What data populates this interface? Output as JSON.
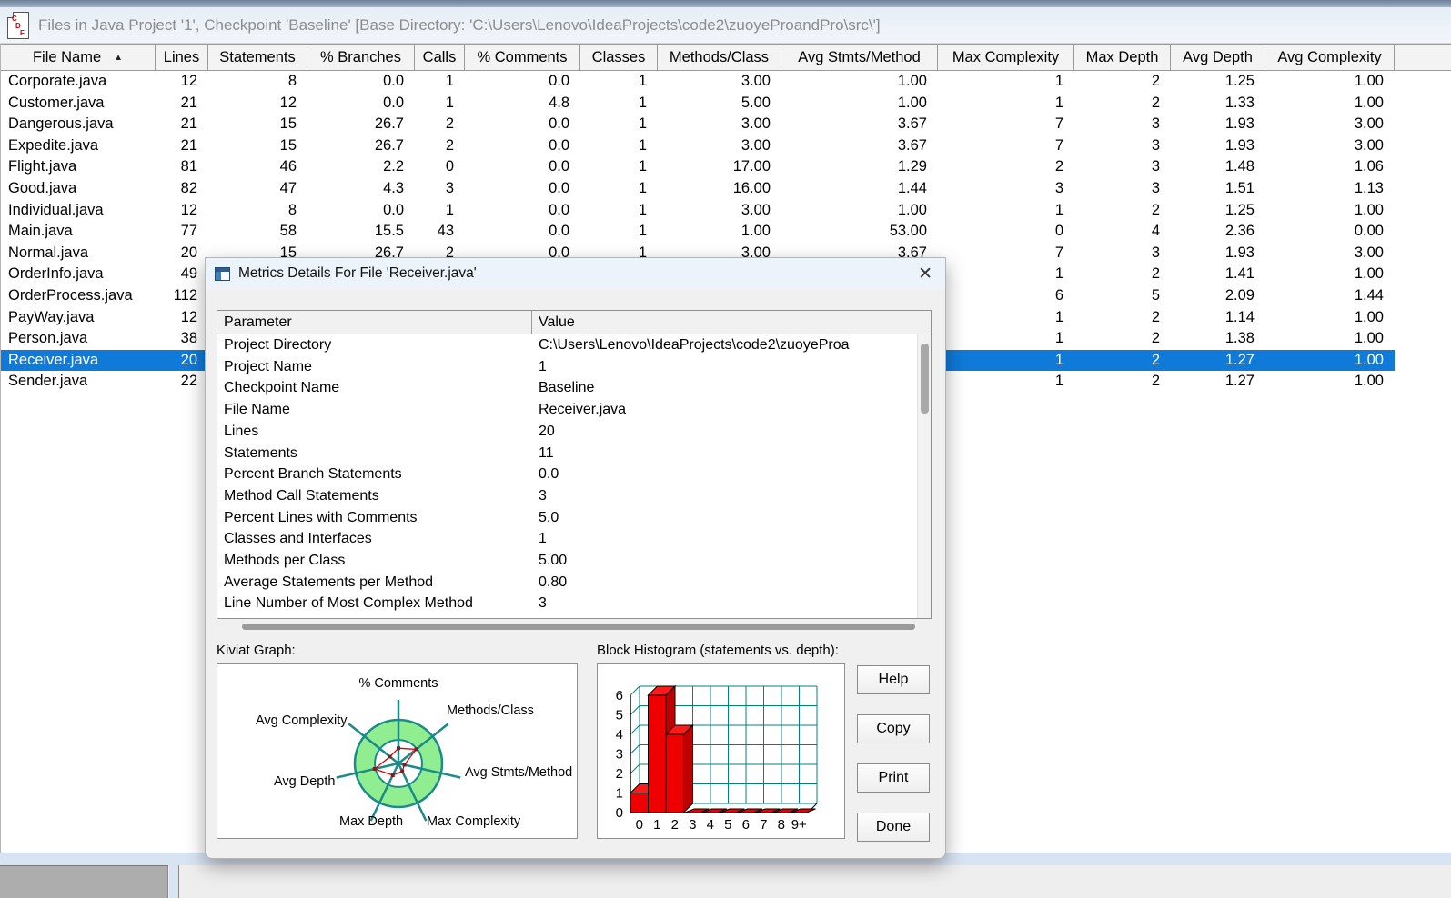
{
  "window": {
    "title": "Files in Java Project '1', Checkpoint 'Baseline'  [Base Directory: 'C:\\Users\\Lenovo\\IdeaProjects\\code2\\zuoyeProandPro\\src\\']",
    "app_icon": "sourcemonitor-file-icon"
  },
  "table": {
    "columns": [
      "File Name",
      "Lines",
      "Statements",
      "% Branches",
      "Calls",
      "% Comments",
      "Classes",
      "Methods/Class",
      "Avg Stmts/Method",
      "Max Complexity",
      "Max Depth",
      "Avg Depth",
      "Avg Complexity"
    ],
    "sort_column": "File Name",
    "sort_icon": "sort-ascending-icon",
    "selected_row_index": 13,
    "selection_color": "#0f7ad8",
    "rows": [
      [
        "Corporate.java",
        "12",
        "8",
        "0.0",
        "1",
        "0.0",
        "1",
        "3.00",
        "1.00",
        "1",
        "2",
        "1.25",
        "1.00"
      ],
      [
        "Customer.java",
        "21",
        "12",
        "0.0",
        "1",
        "4.8",
        "1",
        "5.00",
        "1.00",
        "1",
        "2",
        "1.33",
        "1.00"
      ],
      [
        "Dangerous.java",
        "21",
        "15",
        "26.7",
        "2",
        "0.0",
        "1",
        "3.00",
        "3.67",
        "7",
        "3",
        "1.93",
        "3.00"
      ],
      [
        "Expedite.java",
        "21",
        "15",
        "26.7",
        "2",
        "0.0",
        "1",
        "3.00",
        "3.67",
        "7",
        "3",
        "1.93",
        "3.00"
      ],
      [
        "Flight.java",
        "81",
        "46",
        "2.2",
        "0",
        "0.0",
        "1",
        "17.00",
        "1.29",
        "2",
        "3",
        "1.48",
        "1.06"
      ],
      [
        "Good.java",
        "82",
        "47",
        "4.3",
        "3",
        "0.0",
        "1",
        "16.00",
        "1.44",
        "3",
        "3",
        "1.51",
        "1.13"
      ],
      [
        "Individual.java",
        "12",
        "8",
        "0.0",
        "1",
        "0.0",
        "1",
        "3.00",
        "1.00",
        "1",
        "2",
        "1.25",
        "1.00"
      ],
      [
        "Main.java",
        "77",
        "58",
        "15.5",
        "43",
        "0.0",
        "1",
        "1.00",
        "53.00",
        "0",
        "4",
        "2.36",
        "0.00"
      ],
      [
        "Normal.java",
        "20",
        "15",
        "26.7",
        "2",
        "0.0",
        "1",
        "3.00",
        "3.67",
        "7",
        "3",
        "1.93",
        "3.00"
      ],
      [
        "OrderInfo.java",
        "49",
        "",
        "",
        "",
        "",
        "",
        "",
        "",
        "1",
        "2",
        "1.41",
        "1.00"
      ],
      [
        "OrderProcess.java",
        "112",
        "",
        "",
        "",
        "",
        "",
        "",
        "",
        "6",
        "5",
        "2.09",
        "1.44"
      ],
      [
        "PayWay.java",
        "12",
        "",
        "",
        "",
        "",
        "",
        "",
        "",
        "1",
        "2",
        "1.14",
        "1.00"
      ],
      [
        "Person.java",
        "38",
        "",
        "",
        "",
        "",
        "",
        "",
        "",
        "1",
        "2",
        "1.38",
        "1.00"
      ],
      [
        "Receiver.java",
        "20",
        "",
        "",
        "",
        "",
        "",
        "",
        "",
        "1",
        "2",
        "1.27",
        "1.00"
      ],
      [
        "Sender.java",
        "22",
        "",
        "",
        "",
        "",
        "",
        "",
        "",
        "1",
        "2",
        "1.27",
        "1.00"
      ]
    ]
  },
  "dialog": {
    "title": "Metrics Details For File 'Receiver.java'",
    "close_icon": "close-icon",
    "details": {
      "headers": [
        "Parameter",
        "Value"
      ],
      "rows": [
        [
          "Project Directory",
          "C:\\Users\\Lenovo\\IdeaProjects\\code2\\zuoyeProa"
        ],
        [
          "Project Name",
          "1"
        ],
        [
          "Checkpoint Name",
          "Baseline"
        ],
        [
          "File Name",
          "Receiver.java"
        ],
        [
          "Lines",
          "20"
        ],
        [
          "Statements",
          "11"
        ],
        [
          "Percent Branch Statements",
          "0.0"
        ],
        [
          "Method Call Statements",
          "3"
        ],
        [
          "Percent Lines with Comments",
          "5.0"
        ],
        [
          "Classes and Interfaces",
          "1"
        ],
        [
          "Methods per Class",
          "5.00"
        ],
        [
          "Average Statements per Method",
          "0.80"
        ],
        [
          "Line Number of Most Complex Method",
          "3"
        ]
      ]
    },
    "kiviat_label": "Kiviat Graph:",
    "histogram_label": "Block Histogram (statements vs. depth):",
    "buttons": [
      "Help",
      "Copy",
      "Print",
      "Done"
    ]
  },
  "chart_data": [
    {
      "type": "radar",
      "title": "Kiviat Graph",
      "axes": [
        "% Comments",
        "Methods/Class",
        "Avg Stmts/Method",
        "Max Complexity",
        "Max Depth",
        "Avg Depth",
        "Avg Complexity"
      ],
      "metric_values": [
        5.0,
        5.0,
        0.8,
        1,
        2,
        1.27,
        1.0
      ],
      "plot_fractions": [
        0.35,
        0.52,
        0.14,
        0.2,
        0.3,
        0.56,
        0.25
      ],
      "ring_fill": "#90ee90",
      "ring_stroke": "#1a8a8a",
      "polygon_color": "#e00000",
      "inner_radius_fraction": 0.54
    },
    {
      "type": "bar",
      "title": "Block Histogram (statements vs. depth)",
      "categories": [
        "0",
        "1",
        "2",
        "3",
        "4",
        "5",
        "6",
        "7",
        "8",
        "9+"
      ],
      "values": [
        1,
        6,
        4,
        0,
        0,
        0,
        0,
        0,
        0,
        0
      ],
      "ylim": [
        0,
        6
      ],
      "yticks": [
        0,
        1,
        2,
        3,
        4,
        5,
        6
      ],
      "bar_color": "#ee0000",
      "grid_color": "#008080",
      "grid": true,
      "style": "3d-block"
    }
  ]
}
